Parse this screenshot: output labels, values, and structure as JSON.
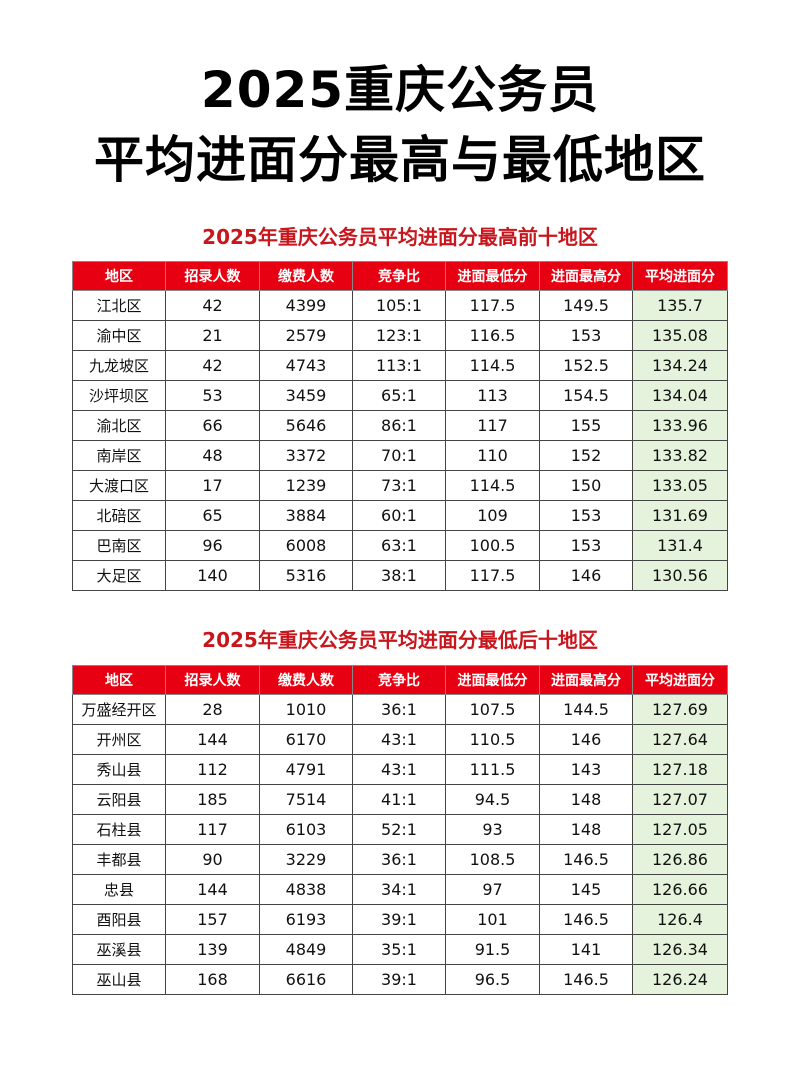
{
  "title": {
    "line1": "2025重庆公务员",
    "line2": "平均进面分最高与最低地区"
  },
  "colors": {
    "header_bg": "#e60012",
    "section_title": "#c8161d",
    "avg_col_bg": "#e5f2dc"
  },
  "headers": [
    "地区",
    "招录人数",
    "缴费人数",
    "竞争比",
    "进面最低分",
    "进面最高分",
    "平均进面分"
  ],
  "top_table": {
    "title": "2025年重庆公务员平均进面分最高前十地区",
    "rows": [
      [
        "江北区",
        "42",
        "4399",
        "105:1",
        "117.5",
        "149.5",
        "135.7"
      ],
      [
        "渝中区",
        "21",
        "2579",
        "123:1",
        "116.5",
        "153",
        "135.08"
      ],
      [
        "九龙坡区",
        "42",
        "4743",
        "113:1",
        "114.5",
        "152.5",
        "134.24"
      ],
      [
        "沙坪坝区",
        "53",
        "3459",
        "65:1",
        "113",
        "154.5",
        "134.04"
      ],
      [
        "渝北区",
        "66",
        "5646",
        "86:1",
        "117",
        "155",
        "133.96"
      ],
      [
        "南岸区",
        "48",
        "3372",
        "70:1",
        "110",
        "152",
        "133.82"
      ],
      [
        "大渡口区",
        "17",
        "1239",
        "73:1",
        "114.5",
        "150",
        "133.05"
      ],
      [
        "北碚区",
        "65",
        "3884",
        "60:1",
        "109",
        "153",
        "131.69"
      ],
      [
        "巴南区",
        "96",
        "6008",
        "63:1",
        "100.5",
        "153",
        "131.4"
      ],
      [
        "大足区",
        "140",
        "5316",
        "38:1",
        "117.5",
        "146",
        "130.56"
      ]
    ]
  },
  "bottom_table": {
    "title": "2025年重庆公务员平均进面分最低后十地区",
    "rows": [
      [
        "万盛经开区",
        "28",
        "1010",
        "36:1",
        "107.5",
        "144.5",
        "127.69"
      ],
      [
        "开州区",
        "144",
        "6170",
        "43:1",
        "110.5",
        "146",
        "127.64"
      ],
      [
        "秀山县",
        "112",
        "4791",
        "43:1",
        "111.5",
        "143",
        "127.18"
      ],
      [
        "云阳县",
        "185",
        "7514",
        "41:1",
        "94.5",
        "148",
        "127.07"
      ],
      [
        "石柱县",
        "117",
        "6103",
        "52:1",
        "93",
        "148",
        "127.05"
      ],
      [
        "丰都县",
        "90",
        "3229",
        "36:1",
        "108.5",
        "146.5",
        "126.86"
      ],
      [
        "忠县",
        "144",
        "4838",
        "34:1",
        "97",
        "145",
        "126.66"
      ],
      [
        "酉阳县",
        "157",
        "6193",
        "39:1",
        "101",
        "146.5",
        "126.4"
      ],
      [
        "巫溪县",
        "139",
        "4849",
        "35:1",
        "91.5",
        "141",
        "126.34"
      ],
      [
        "巫山县",
        "168",
        "6616",
        "39:1",
        "96.5",
        "146.5",
        "126.24"
      ]
    ]
  }
}
